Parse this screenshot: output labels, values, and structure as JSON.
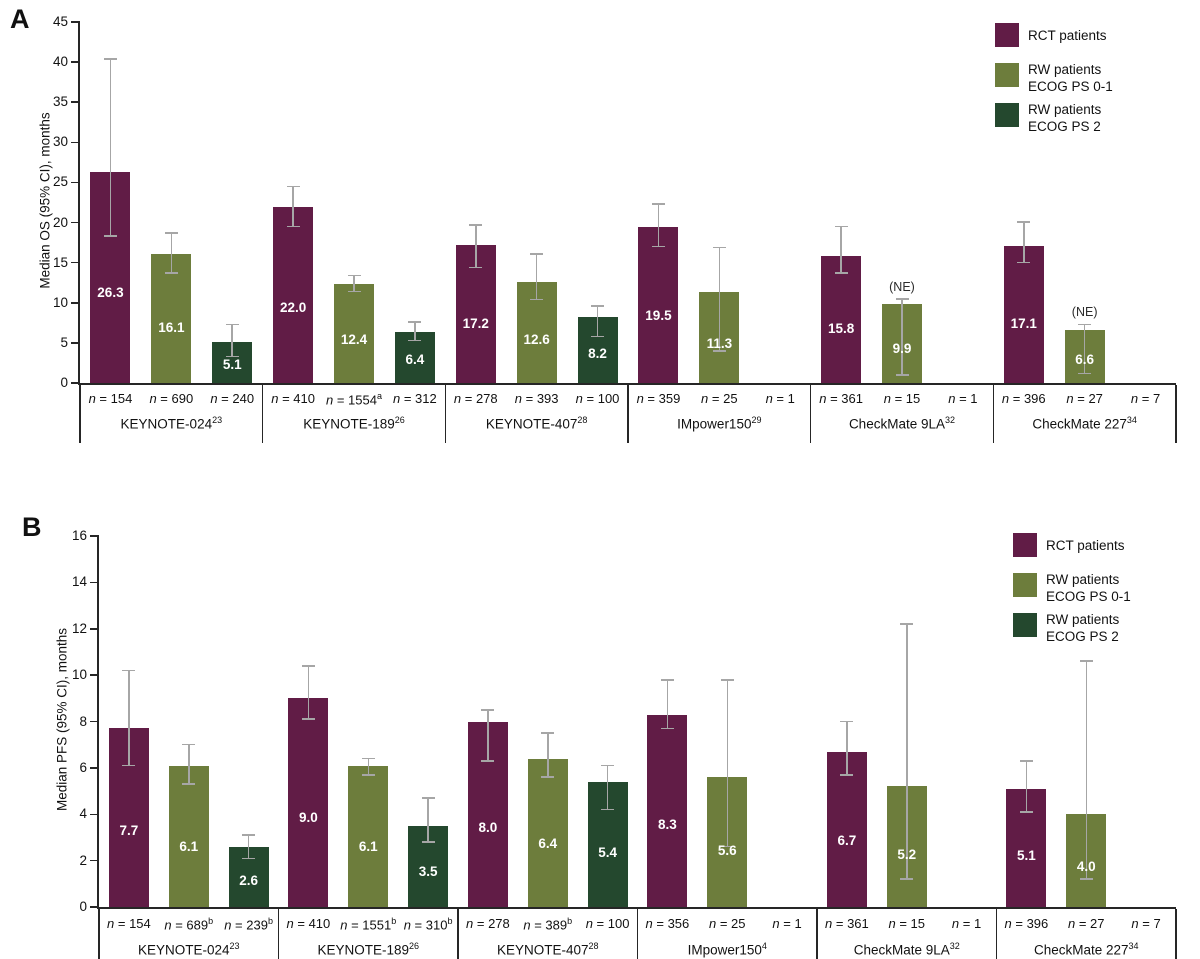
{
  "colors": {
    "rct": "#611c46",
    "rw01": "#6d7d3c",
    "rw2": "#24482e",
    "error_bar": "#a6a6a6",
    "axis": "#262626"
  },
  "ne_label": "(NE)",
  "n_prefix": "n = ",
  "legend": {
    "position": "top-right",
    "items": [
      {
        "series": "rct",
        "lines": [
          "RCT patients"
        ]
      },
      {
        "series": "rw01",
        "lines": [
          "RW patients",
          "ECOG PS 0-1"
        ]
      },
      {
        "series": "rw2",
        "lines": [
          "RW patients",
          "ECOG PS 2"
        ]
      }
    ]
  },
  "chart_data": [
    {
      "type": "bar",
      "panel_label": "A",
      "title": "",
      "xlabel": "",
      "ylabel": "Median OS (95% CI), months",
      "ylim": [
        0,
        45
      ],
      "yticks": [
        0,
        5,
        10,
        15,
        20,
        25,
        30,
        35,
        40,
        45
      ],
      "grid": false,
      "legend_position": "top-right",
      "series_names": [
        "RCT patients",
        "RW patients ECOG PS 0-1",
        "RW patients ECOG PS 2"
      ],
      "groups": [
        {
          "trial": "KEYNOTE-024",
          "trial_sup": "23",
          "bars": [
            {
              "series": "rct",
              "n": "154",
              "n_sup": "",
              "value": 26.3,
              "ci_low": 18.3,
              "ci_high": 40.4,
              "ne": false
            },
            {
              "series": "rw01",
              "n": "690",
              "n_sup": "",
              "value": 16.1,
              "ci_low": 13.7,
              "ci_high": 18.7,
              "ne": false
            },
            {
              "series": "rw2",
              "n": "240",
              "n_sup": "",
              "value": 5.1,
              "ci_low": 3.3,
              "ci_high": 7.3,
              "ne": false
            }
          ]
        },
        {
          "trial": "KEYNOTE-189",
          "trial_sup": "26",
          "bars": [
            {
              "series": "rct",
              "n": "410",
              "n_sup": "",
              "value": 22.0,
              "ci_low": 19.5,
              "ci_high": 24.5,
              "ne": false
            },
            {
              "series": "rw01",
              "n": "1554",
              "n_sup": "a",
              "value": 12.4,
              "ci_low": 11.4,
              "ci_high": 13.4,
              "ne": false
            },
            {
              "series": "rw2",
              "n": "312",
              "n_sup": "",
              "value": 6.4,
              "ci_low": 5.3,
              "ci_high": 7.6,
              "ne": false
            }
          ]
        },
        {
          "trial": "KEYNOTE-407",
          "trial_sup": "28",
          "bars": [
            {
              "series": "rct",
              "n": "278",
              "n_sup": "",
              "value": 17.2,
              "ci_low": 14.4,
              "ci_high": 19.7,
              "ne": false
            },
            {
              "series": "rw01",
              "n": "393",
              "n_sup": "",
              "value": 12.6,
              "ci_low": 10.4,
              "ci_high": 16.1,
              "ne": false
            },
            {
              "series": "rw2",
              "n": "100",
              "n_sup": "",
              "value": 8.2,
              "ci_low": 5.8,
              "ci_high": 9.6,
              "ne": false
            }
          ]
        },
        {
          "trial": "IMpower150",
          "trial_sup": "29",
          "bars": [
            {
              "series": "rct",
              "n": "359",
              "n_sup": "",
              "value": 19.5,
              "ci_low": 17.0,
              "ci_high": 22.3,
              "ne": false
            },
            {
              "series": "rw01",
              "n": "25",
              "n_sup": "",
              "value": 11.3,
              "ci_low": 4.0,
              "ci_high": 16.9,
              "ne": false
            },
            {
              "series": "rw2",
              "n": "1",
              "n_sup": "",
              "value": null,
              "ci_low": null,
              "ci_high": null,
              "ne": false
            }
          ]
        },
        {
          "trial": "CheckMate 9LA",
          "trial_sup": "32",
          "bars": [
            {
              "series": "rct",
              "n": "361",
              "n_sup": "",
              "value": 15.8,
              "ci_low": 13.7,
              "ci_high": 19.5,
              "ne": false
            },
            {
              "series": "rw01",
              "n": "15",
              "n_sup": "",
              "value": 9.9,
              "ci_low": 1.0,
              "ci_high": 10.5,
              "ne": true
            },
            {
              "series": "rw2",
              "n": "1",
              "n_sup": "",
              "value": null,
              "ci_low": null,
              "ci_high": null,
              "ne": false
            }
          ]
        },
        {
          "trial": "CheckMate 227",
          "trial_sup": "34",
          "bars": [
            {
              "series": "rct",
              "n": "396",
              "n_sup": "",
              "value": 17.1,
              "ci_low": 15.0,
              "ci_high": 20.1,
              "ne": false
            },
            {
              "series": "rw01",
              "n": "27",
              "n_sup": "",
              "value": 6.6,
              "ci_low": 1.2,
              "ci_high": 7.3,
              "ne": true
            },
            {
              "series": "rw2",
              "n": "7",
              "n_sup": "",
              "value": null,
              "ci_low": null,
              "ci_high": null,
              "ne": false
            }
          ]
        }
      ]
    },
    {
      "type": "bar",
      "panel_label": "B",
      "title": "",
      "xlabel": "",
      "ylabel": "Median PFS (95% CI), months",
      "ylim": [
        0,
        16
      ],
      "yticks": [
        0,
        2,
        4,
        6,
        8,
        10,
        12,
        14,
        16
      ],
      "grid": false,
      "legend_position": "top-right",
      "series_names": [
        "RCT patients",
        "RW patients ECOG PS 0-1",
        "RW patients ECOG PS 2"
      ],
      "groups": [
        {
          "trial": "KEYNOTE-024",
          "trial_sup": "23",
          "bars": [
            {
              "series": "rct",
              "n": "154",
              "n_sup": "",
              "value": 7.7,
              "ci_low": 6.1,
              "ci_high": 10.2,
              "ne": false
            },
            {
              "series": "rw01",
              "n": "689",
              "n_sup": "b",
              "value": 6.1,
              "ci_low": 5.3,
              "ci_high": 7.0,
              "ne": false
            },
            {
              "series": "rw2",
              "n": "239",
              "n_sup": "b",
              "value": 2.6,
              "ci_low": 2.1,
              "ci_high": 3.1,
              "ne": false
            }
          ]
        },
        {
          "trial": "KEYNOTE-189",
          "trial_sup": "26",
          "bars": [
            {
              "series": "rct",
              "n": "410",
              "n_sup": "",
              "value": 9.0,
              "ci_low": 8.1,
              "ci_high": 10.4,
              "ne": false
            },
            {
              "series": "rw01",
              "n": "1551",
              "n_sup": "b",
              "value": 6.1,
              "ci_low": 5.7,
              "ci_high": 6.4,
              "ne": false
            },
            {
              "series": "rw2",
              "n": "310",
              "n_sup": "b",
              "value": 3.5,
              "ci_low": 2.8,
              "ci_high": 4.7,
              "ne": false
            }
          ]
        },
        {
          "trial": "KEYNOTE-407",
          "trial_sup": "28",
          "bars": [
            {
              "series": "rct",
              "n": "278",
              "n_sup": "",
              "value": 8.0,
              "ci_low": 6.3,
              "ci_high": 8.5,
              "ne": false
            },
            {
              "series": "rw01",
              "n": "389",
              "n_sup": "b",
              "value": 6.4,
              "ci_low": 5.6,
              "ci_high": 7.5,
              "ne": false
            },
            {
              "series": "rw2",
              "n": "100",
              "n_sup": "",
              "value": 5.4,
              "ci_low": 4.2,
              "ci_high": 6.1,
              "ne": false
            }
          ]
        },
        {
          "trial": "IMpower150",
          "trial_sup": "4",
          "bars": [
            {
              "series": "rct",
              "n": "356",
              "n_sup": "",
              "value": 8.3,
              "ci_low": 7.7,
              "ci_high": 9.8,
              "ne": false
            },
            {
              "series": "rw01",
              "n": "25",
              "n_sup": "",
              "value": 5.6,
              "ci_low": 2.6,
              "ci_high": 9.8,
              "ne": false
            },
            {
              "series": "rw2",
              "n": "1",
              "n_sup": "",
              "value": null,
              "ci_low": null,
              "ci_high": null,
              "ne": false
            }
          ]
        },
        {
          "trial": "CheckMate 9LA",
          "trial_sup": "32",
          "bars": [
            {
              "series": "rct",
              "n": "361",
              "n_sup": "",
              "value": 6.7,
              "ci_low": 5.7,
              "ci_high": 8.0,
              "ne": false
            },
            {
              "series": "rw01",
              "n": "15",
              "n_sup": "",
              "value": 5.2,
              "ci_low": 1.2,
              "ci_high": 12.2,
              "ne": false
            },
            {
              "series": "rw2",
              "n": "1",
              "n_sup": "",
              "value": null,
              "ci_low": null,
              "ci_high": null,
              "ne": false
            }
          ]
        },
        {
          "trial": "CheckMate 227",
          "trial_sup": "34",
          "bars": [
            {
              "series": "rct",
              "n": "396",
              "n_sup": "",
              "value": 5.1,
              "ci_low": 4.1,
              "ci_high": 6.3,
              "ne": false
            },
            {
              "series": "rw01",
              "n": "27",
              "n_sup": "",
              "value": 4.0,
              "ci_low": 1.2,
              "ci_high": 10.6,
              "ne": false
            },
            {
              "series": "rw2",
              "n": "7",
              "n_sup": "",
              "value": null,
              "ci_low": null,
              "ci_high": null,
              "ne": false
            }
          ]
        }
      ]
    }
  ]
}
